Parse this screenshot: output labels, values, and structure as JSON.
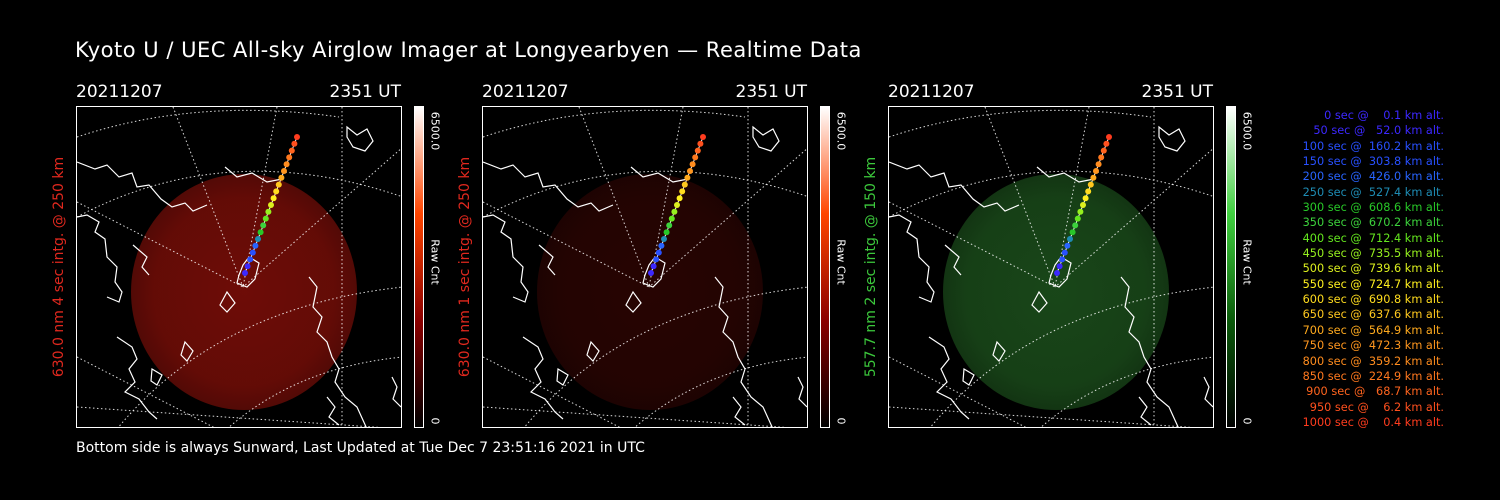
{
  "title": "Kyoto U / UEC All-sky Airglow Imager at Longyearbyen — Realtime Data",
  "footer": "Bottom side is always Sunward, Last Updated at Tue Dec  7 23:51:16 2021 in UTC",
  "panels": [
    {
      "date": "20211207",
      "time": "2351 UT",
      "side_label": "630.0 nm 4 sec intg. @ 250 km",
      "label_color": "#e0281e",
      "cbar_max": "6500.0",
      "cbar_min": "0",
      "cbar_unit": "Raw Cnt",
      "glow_color": "#7a0e08",
      "glow_opacity": 0.9,
      "cbar_colors": [
        "#000000",
        "#8b0000",
        "#ff4500",
        "#ffffff"
      ]
    },
    {
      "date": "20211207",
      "time": "2351 UT",
      "side_label": "630.0 nm 1 sec intg. @ 250 km",
      "label_color": "#e0281e",
      "cbar_max": "6500.0",
      "cbar_min": "0",
      "cbar_unit": "Raw Cnt",
      "glow_color": "#2e0503",
      "glow_opacity": 0.85,
      "cbar_colors": [
        "#000000",
        "#8b0000",
        "#ff4500",
        "#ffffff"
      ]
    },
    {
      "date": "20211207",
      "time": "2351 UT",
      "side_label": "557.7 nm 2 sec intg. @ 150 km",
      "label_color": "#3cc83c",
      "cbar_max": "6500.0",
      "cbar_min": "0",
      "cbar_unit": "Raw Cnt",
      "glow_color": "#1a4a1a",
      "glow_opacity": 0.95,
      "cbar_colors": [
        "#000000",
        "#0a5a0a",
        "#40d040",
        "#ffffff"
      ]
    }
  ],
  "legend": [
    {
      "text": "   0 sec @    0.1 km alt.",
      "color": "#3c28ff"
    },
    {
      "text": "  50 sec @   52.0 km alt.",
      "color": "#3c28ff"
    },
    {
      "text": " 100 sec @  160.2 km alt.",
      "color": "#2850ff"
    },
    {
      "text": " 150 sec @  303.8 km alt.",
      "color": "#2850ff"
    },
    {
      "text": " 200 sec @  426.0 km alt.",
      "color": "#2864ff"
    },
    {
      "text": " 250 sec @  527.4 km alt.",
      "color": "#1e8cb4"
    },
    {
      "text": " 300 sec @  608.6 km alt.",
      "color": "#28c828"
    },
    {
      "text": " 350 sec @  670.2 km alt.",
      "color": "#3cd23c"
    },
    {
      "text": " 400 sec @  712.4 km alt.",
      "color": "#64e61e"
    },
    {
      "text": " 450 sec @  735.5 km alt.",
      "color": "#96f01e"
    },
    {
      "text": " 500 sec @  739.6 km alt.",
      "color": "#dcf01e"
    },
    {
      "text": " 550 sec @  724.7 km alt.",
      "color": "#fff01e"
    },
    {
      "text": " 600 sec @  690.8 km alt.",
      "color": "#ffdc1e"
    },
    {
      "text": " 650 sec @  637.6 km alt.",
      "color": "#ffc81e"
    },
    {
      "text": " 700 sec @  564.9 km alt.",
      "color": "#ffaa1e"
    },
    {
      "text": " 750 sec @  472.3 km alt.",
      "color": "#ff961e"
    },
    {
      "text": " 800 sec @  359.2 km alt.",
      "color": "#ff8c1e"
    },
    {
      "text": " 850 sec @  224.9 km alt.",
      "color": "#ff781e"
    },
    {
      "text": " 900 sec @   68.7 km alt.",
      "color": "#ff641e"
    },
    {
      "text": " 950 sec @    6.2 km alt.",
      "color": "#ff501e"
    },
    {
      "text": "1000 sec @    0.4 km alt.",
      "color": "#ff3c1e"
    }
  ]
}
